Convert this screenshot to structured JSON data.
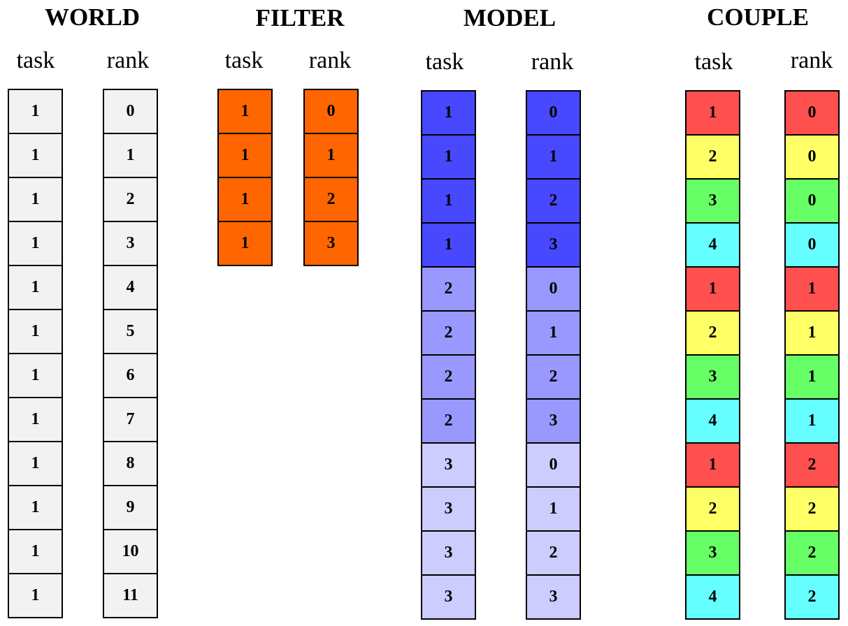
{
  "colors": {
    "world": "#f2f2f2",
    "filter": "#ff6600",
    "model_dark": "#4848ff",
    "model_mid": "#9898ff",
    "model_light": "#ccccff",
    "couple_red": "#ff5050",
    "couple_yellow": "#ffff66",
    "couple_green": "#66ff66",
    "couple_cyan": "#66ffff"
  },
  "groups": [
    {
      "title": "WORLD",
      "columns": [
        {
          "header": "task",
          "cells": [
            "1",
            "1",
            "1",
            "1",
            "1",
            "1",
            "1",
            "1",
            "1",
            "1",
            "1",
            "1"
          ],
          "fills": [
            "world",
            "world",
            "world",
            "world",
            "world",
            "world",
            "world",
            "world",
            "world",
            "world",
            "world",
            "world"
          ]
        },
        {
          "header": "rank",
          "cells": [
            "0",
            "1",
            "2",
            "3",
            "4",
            "5",
            "6",
            "7",
            "8",
            "9",
            "10",
            "11"
          ],
          "fills": [
            "world",
            "world",
            "world",
            "world",
            "world",
            "world",
            "world",
            "world",
            "world",
            "world",
            "world",
            "world"
          ]
        }
      ]
    },
    {
      "title": "FILTER",
      "columns": [
        {
          "header": "task",
          "cells": [
            "1",
            "1",
            "1",
            "1"
          ],
          "fills": [
            "filter",
            "filter",
            "filter",
            "filter"
          ]
        },
        {
          "header": "rank",
          "cells": [
            "0",
            "1",
            "2",
            "3"
          ],
          "fills": [
            "filter",
            "filter",
            "filter",
            "filter"
          ]
        }
      ]
    },
    {
      "title": "MODEL",
      "columns": [
        {
          "header": "task",
          "cells": [
            "1",
            "1",
            "1",
            "1",
            "2",
            "2",
            "2",
            "2",
            "3",
            "3",
            "3",
            "3"
          ],
          "fills": [
            "model_dark",
            "model_dark",
            "model_dark",
            "model_dark",
            "model_mid",
            "model_mid",
            "model_mid",
            "model_mid",
            "model_light",
            "model_light",
            "model_light",
            "model_light"
          ]
        },
        {
          "header": "rank",
          "cells": [
            "0",
            "1",
            "2",
            "3",
            "0",
            "1",
            "2",
            "3",
            "0",
            "1",
            "2",
            "3"
          ],
          "fills": [
            "model_dark",
            "model_dark",
            "model_dark",
            "model_dark",
            "model_mid",
            "model_mid",
            "model_mid",
            "model_mid",
            "model_light",
            "model_light",
            "model_light",
            "model_light"
          ]
        }
      ]
    },
    {
      "title": "COUPLE",
      "columns": [
        {
          "header": "task",
          "cells": [
            "1",
            "2",
            "3",
            "4",
            "1",
            "2",
            "3",
            "4",
            "1",
            "2",
            "3",
            "4"
          ],
          "fills": [
            "couple_red",
            "couple_yellow",
            "couple_green",
            "couple_cyan",
            "couple_red",
            "couple_yellow",
            "couple_green",
            "couple_cyan",
            "couple_red",
            "couple_yellow",
            "couple_green",
            "couple_cyan"
          ]
        },
        {
          "header": "rank",
          "cells": [
            "0",
            "0",
            "0",
            "0",
            "1",
            "1",
            "1",
            "1",
            "2",
            "2",
            "2",
            "2"
          ],
          "fills": [
            "couple_red",
            "couple_yellow",
            "couple_green",
            "couple_cyan",
            "couple_red",
            "couple_yellow",
            "couple_green",
            "couple_cyan",
            "couple_red",
            "couple_yellow",
            "couple_green",
            "couple_cyan"
          ]
        }
      ]
    }
  ]
}
